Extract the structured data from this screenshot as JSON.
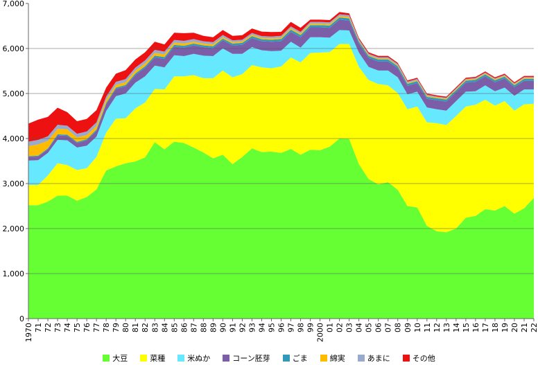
{
  "chart_data": {
    "type": "area",
    "stacked": true,
    "title": "",
    "xlabel": "",
    "ylabel": "",
    "ylim": [
      0,
      7000
    ],
    "yticks": [
      "0",
      "1,000",
      "2,000",
      "3,000",
      "4,000",
      "5,000",
      "6,000",
      "7,000"
    ],
    "grid": "y-major",
    "legend_position": "bottom",
    "categories": [
      "1970",
      "71",
      "72",
      "73",
      "74",
      "75",
      "76",
      "77",
      "78",
      "79",
      "80",
      "81",
      "82",
      "83",
      "84",
      "85",
      "86",
      "87",
      "88",
      "89",
      "90",
      "91",
      "92",
      "93",
      "94",
      "95",
      "96",
      "97",
      "98",
      "99",
      "2000",
      "01",
      "02",
      "03",
      "04",
      "05",
      "06",
      "07",
      "08",
      "09",
      "10",
      "11",
      "12",
      "13",
      "14",
      "15",
      "16",
      "17",
      "18",
      "19",
      "20",
      "21",
      "22"
    ],
    "series": [
      {
        "name": "大豆",
        "color": "#66ff33",
        "values": [
          2520,
          2520,
          2600,
          2730,
          2730,
          2620,
          2700,
          2870,
          3290,
          3380,
          3450,
          3490,
          3580,
          3920,
          3760,
          3930,
          3900,
          3800,
          3690,
          3560,
          3640,
          3430,
          3590,
          3780,
          3700,
          3710,
          3680,
          3770,
          3640,
          3750,
          3740,
          3820,
          4000,
          3990,
          3430,
          3100,
          2980,
          3030,
          2860,
          2500,
          2470,
          2060,
          1940,
          1920,
          2000,
          2240,
          2280,
          2430,
          2400,
          2500,
          2330,
          2450,
          2680
        ]
      },
      {
        "name": "菜種",
        "color": "#ffff00",
        "values": [
          450,
          450,
          580,
          720,
          680,
          680,
          640,
          720,
          840,
          1060,
          1000,
          1180,
          1220,
          1180,
          1330,
          1450,
          1480,
          1610,
          1650,
          1780,
          1870,
          1930,
          1840,
          1850,
          1880,
          1850,
          1920,
          2030,
          2050,
          2150,
          2170,
          2100,
          2100,
          2110,
          2160,
          2200,
          2230,
          2150,
          2150,
          2150,
          2240,
          2300,
          2400,
          2380,
          2500,
          2470,
          2470,
          2430,
          2330,
          2330,
          2290,
          2310,
          2090
        ]
      },
      {
        "name": "米ぬか",
        "color": "#66e8ff",
        "values": [
          540,
          550,
          500,
          520,
          550,
          500,
          500,
          450,
          480,
          500,
          550,
          570,
          580,
          520,
          490,
          470,
          450,
          470,
          500,
          490,
          490,
          520,
          450,
          400,
          380,
          380,
          350,
          350,
          330,
          350,
          340,
          320,
          310,
          300,
          320,
          290,
          300,
          330,
          350,
          330,
          330,
          330,
          310,
          320,
          330,
          330,
          300,
          320,
          320,
          300,
          330,
          330,
          320
        ]
      },
      {
        "name": "コーン胚芽",
        "color": "#7b5ea7",
        "values": [
          80,
          80,
          80,
          100,
          100,
          100,
          120,
          130,
          150,
          160,
          160,
          170,
          190,
          180,
          190,
          190,
          190,
          190,
          190,
          180,
          180,
          190,
          200,
          200,
          200,
          210,
          210,
          220,
          230,
          220,
          220,
          220,
          230,
          220,
          200,
          200,
          200,
          200,
          200,
          190,
          190,
          190,
          200,
          200,
          200,
          200,
          210,
          200,
          200,
          200,
          190,
          190,
          190
        ]
      },
      {
        "name": "ごま",
        "color": "#3399bb",
        "values": [
          20,
          20,
          20,
          25,
          25,
          25,
          25,
          30,
          30,
          30,
          30,
          35,
          35,
          40,
          40,
          40,
          40,
          40,
          40,
          40,
          40,
          40,
          45,
          45,
          45,
          45,
          50,
          50,
          50,
          50,
          50,
          50,
          50,
          50,
          45,
          45,
          45,
          45,
          45,
          45,
          45,
          45,
          45,
          45,
          45,
          45,
          45,
          45,
          45,
          45,
          45,
          45,
          45
        ]
      },
      {
        "name": "綿実",
        "color": "#ffbb00",
        "values": [
          220,
          250,
          170,
          120,
          120,
          100,
          90,
          80,
          70,
          60,
          60,
          60,
          60,
          60,
          60,
          50,
          50,
          40,
          40,
          40,
          30,
          30,
          30,
          30,
          30,
          30,
          30,
          30,
          30,
          30,
          30,
          30,
          30,
          30,
          20,
          20,
          20,
          20,
          20,
          20,
          20,
          20,
          20,
          20,
          20,
          20,
          20,
          20,
          20,
          20,
          20,
          20,
          20
        ]
      },
      {
        "name": "あまに",
        "color": "#99aacc",
        "values": [
          100,
          100,
          100,
          90,
          80,
          80,
          80,
          80,
          70,
          70,
          70,
          70,
          70,
          70,
          60,
          60,
          60,
          60,
          50,
          50,
          50,
          40,
          40,
          40,
          40,
          40,
          40,
          40,
          40,
          40,
          40,
          40,
          40,
          40,
          30,
          30,
          30,
          30,
          30,
          30,
          30,
          30,
          20,
          20,
          20,
          20,
          20,
          20,
          20,
          20,
          20,
          20,
          20
        ]
      },
      {
        "name": "その他",
        "color": "#ee1111",
        "values": [
          400,
          450,
          430,
          380,
          300,
          280,
          280,
          270,
          200,
          180,
          200,
          180,
          180,
          180,
          160,
          160,
          170,
          140,
          120,
          110,
          110,
          100,
          100,
          100,
          100,
          100,
          90,
          100,
          90,
          50,
          50,
          50,
          50,
          40,
          30,
          30,
          30,
          30,
          25,
          25,
          25,
          25,
          25,
          25,
          25,
          25,
          25,
          25,
          25,
          25,
          25,
          25,
          25
        ]
      }
    ]
  }
}
